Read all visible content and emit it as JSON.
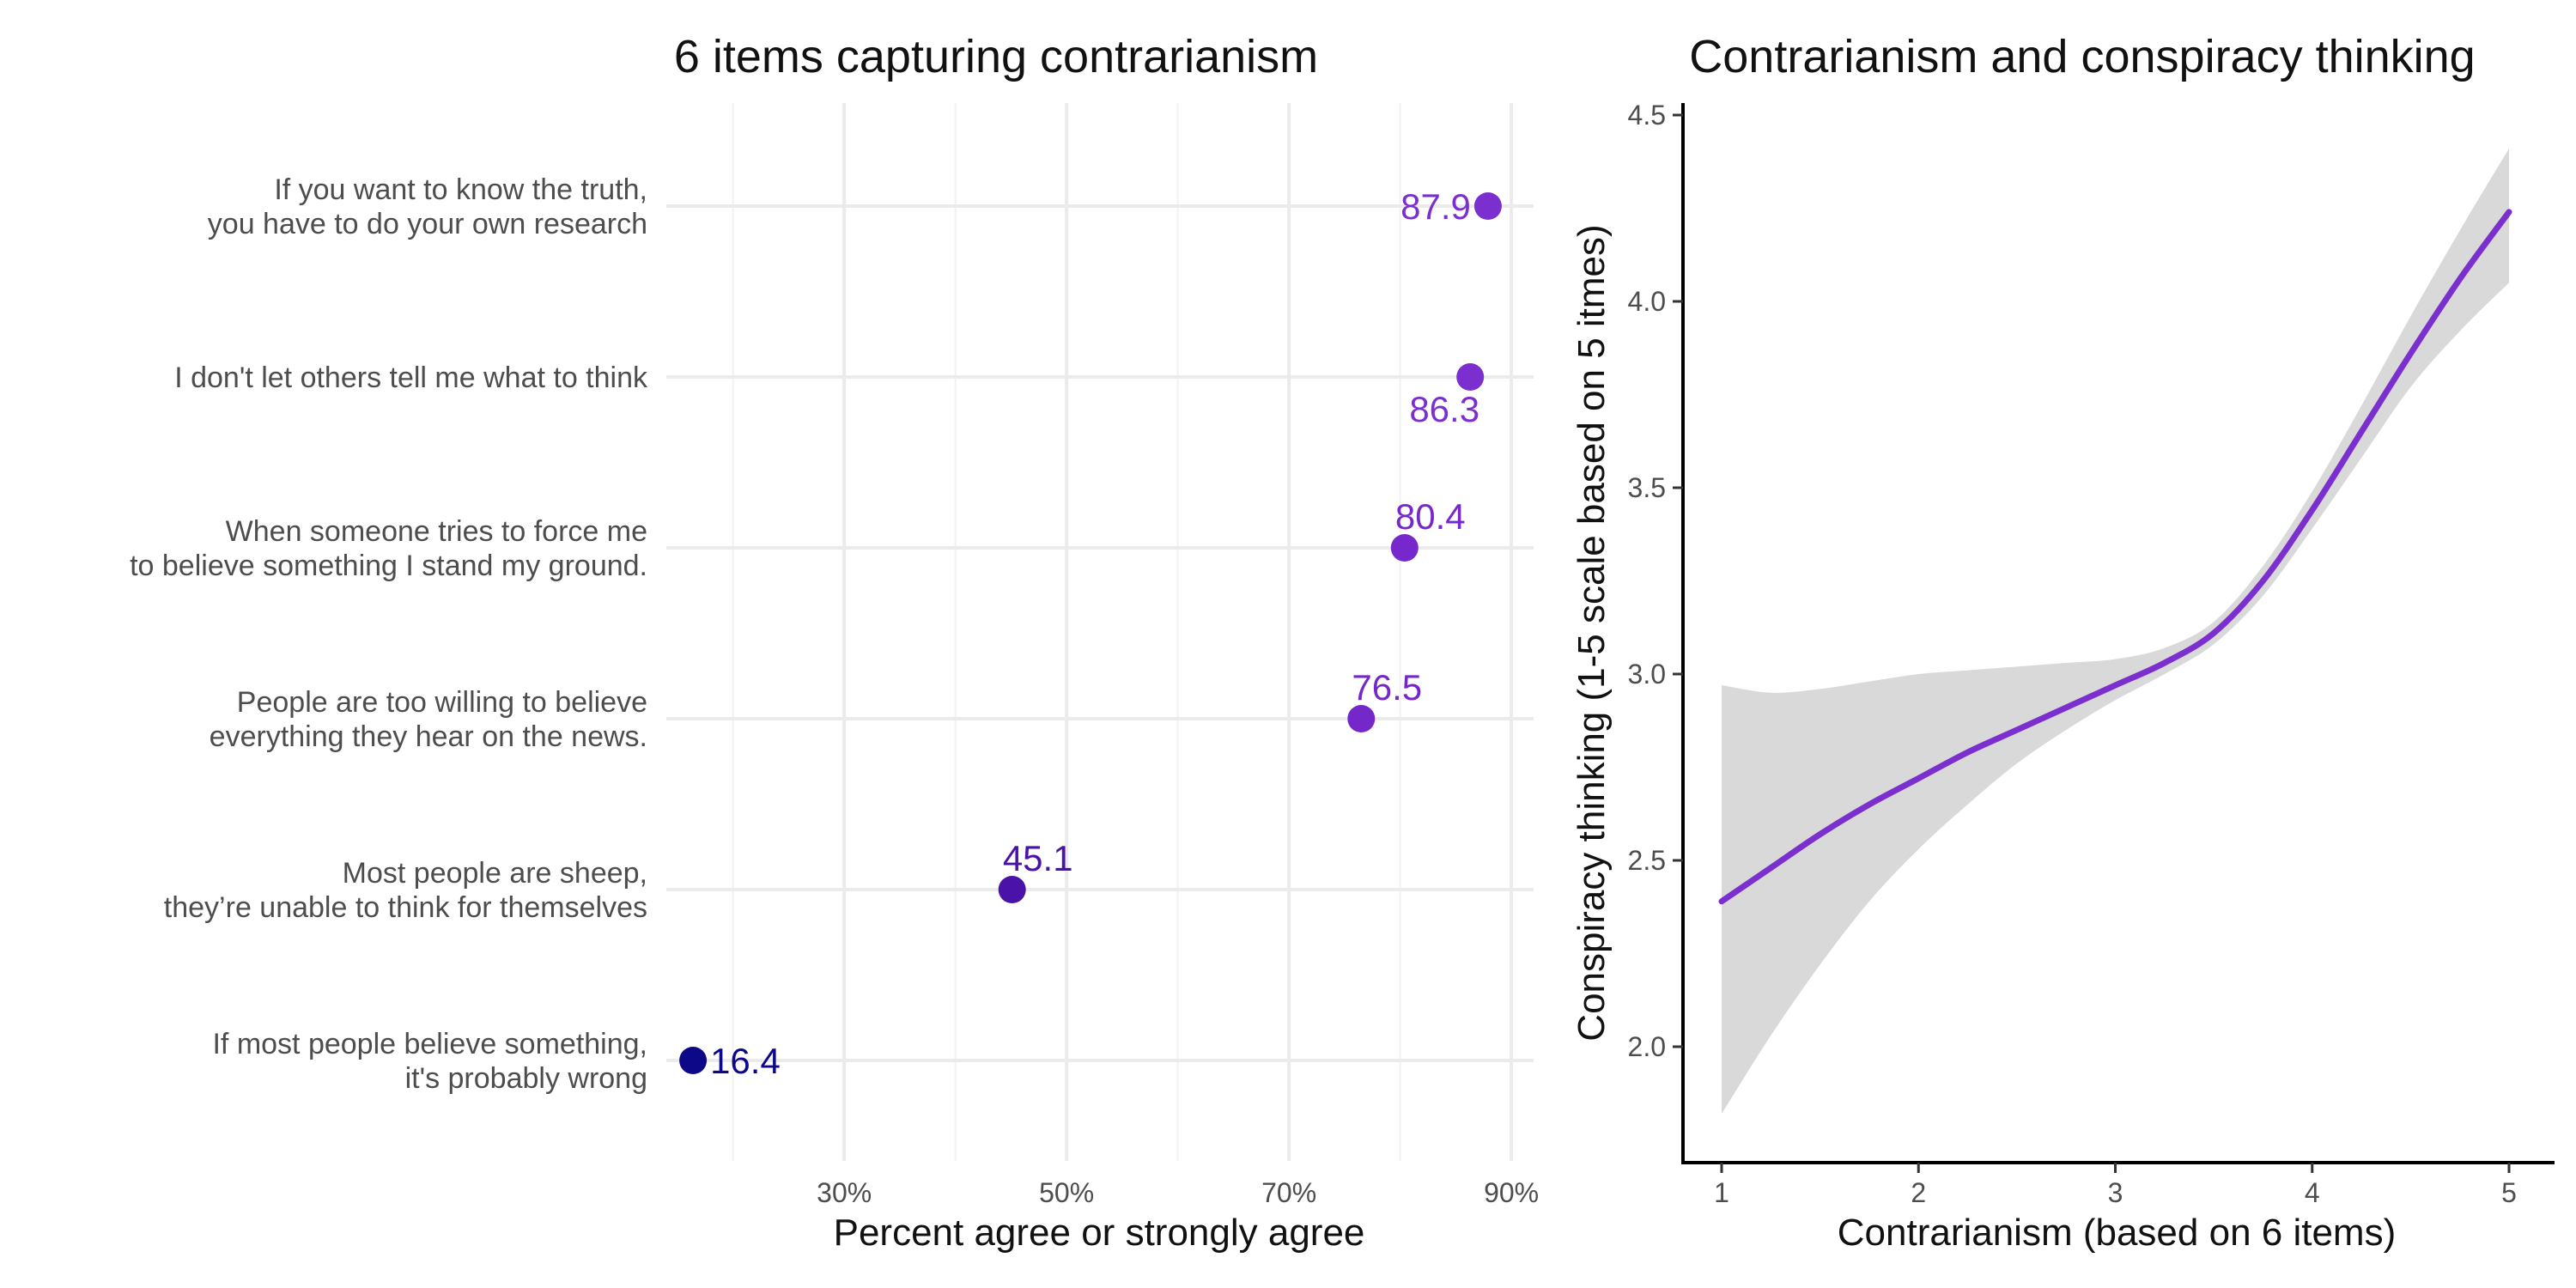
{
  "chart_data": [
    {
      "type": "scatter",
      "title": "6 items capturing contrarianism",
      "xlabel": "Percent agree or strongly agree",
      "ylabel": "",
      "xlim": [
        14,
        92
      ],
      "x_ticks": [
        30,
        50,
        70,
        90
      ],
      "x_tick_labels": [
        "30%",
        "50%",
        "70%",
        "90%"
      ],
      "grid": true,
      "legend": "none",
      "points": [
        {
          "label_lines": [
            "If you want to know the truth,",
            "you have to do your own research"
          ],
          "value": 87.9,
          "value_label": "87.9",
          "color": "#7B2FCF",
          "label_pos": "left"
        },
        {
          "label_lines": [
            "I don't let others tell me what to think"
          ],
          "value": 86.3,
          "value_label": "86.3",
          "color": "#7B2FCF",
          "label_pos": "below"
        },
        {
          "label_lines": [
            "When someone tries to force me",
            "to believe something I stand my ground."
          ],
          "value": 80.4,
          "value_label": "80.4",
          "color": "#7628CC",
          "label_pos": "above"
        },
        {
          "label_lines": [
            "People are too willing to believe",
            "everything they hear on the news."
          ],
          "value": 76.5,
          "value_label": "76.5",
          "color": "#7428CA",
          "label_pos": "above"
        },
        {
          "label_lines": [
            "Most people are sheep,",
            "they’re unable to think for themselves"
          ],
          "value": 45.1,
          "value_label": "45.1",
          "color": "#4A12A8",
          "label_pos": "above"
        },
        {
          "label_lines": [
            "If most people believe something,",
            "it's probably wrong"
          ],
          "value": 16.4,
          "value_label": "16.4",
          "color": "#0D0887",
          "label_pos": "right"
        }
      ]
    },
    {
      "type": "line",
      "title": "Contrarianism and conspiracy thinking",
      "xlabel": "Contrarianism (based on 6 items)",
      "ylabel": "Conspiracy thinking (1-5 scale based on 5 itmes)",
      "xlim": [
        0.9,
        5.2
      ],
      "ylim": [
        1.83,
        4.52
      ],
      "x_ticks": [
        1,
        2,
        3,
        4,
        5
      ],
      "x_tick_labels": [
        "1",
        "2",
        "3",
        "4",
        "5"
      ],
      "y_ticks": [
        2.0,
        2.5,
        3.0,
        3.5,
        4.0,
        4.5
      ],
      "y_tick_labels": [
        "2.0",
        "2.5",
        "3.0",
        "3.5",
        "4.0",
        "4.5"
      ],
      "grid": false,
      "legend": "none",
      "line_color": "#7B2FCF",
      "band_color": "#d9d9d9",
      "series": [
        {
          "x": [
            1.0,
            1.25,
            1.5,
            1.75,
            2.0,
            2.25,
            2.5,
            2.75,
            3.0,
            3.25,
            3.5,
            3.75,
            4.0,
            4.25,
            4.5,
            4.75,
            5.0
          ],
          "y": [
            2.39,
            2.48,
            2.57,
            2.65,
            2.72,
            2.79,
            2.85,
            2.91,
            2.97,
            3.03,
            3.11,
            3.25,
            3.44,
            3.65,
            3.86,
            4.06,
            4.24
          ],
          "lower": [
            1.82,
            2.03,
            2.22,
            2.39,
            2.53,
            2.65,
            2.76,
            2.85,
            2.93,
            3.0,
            3.08,
            3.21,
            3.39,
            3.58,
            3.77,
            3.92,
            4.05
          ],
          "upper": [
            2.97,
            2.95,
            2.96,
            2.98,
            3.0,
            3.01,
            3.02,
            3.03,
            3.04,
            3.07,
            3.14,
            3.29,
            3.49,
            3.72,
            3.96,
            4.19,
            4.41
          ]
        }
      ]
    }
  ]
}
